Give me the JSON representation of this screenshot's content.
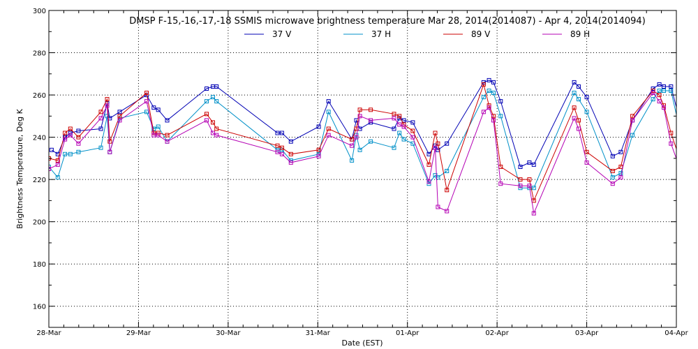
{
  "chart_data": {
    "type": "line",
    "title": "DMSP F-15,-16,-17,-18 SSMIS microwave brightness temperature Mar 28, 2014(2014087) - Apr  4, 2014(2014094)",
    "xlabel": "Date (EST)",
    "ylabel": "Brightness Temperature, Deg K",
    "xlim": [
      0,
      7
    ],
    "ylim": [
      150,
      300
    ],
    "x_ticks": [
      "28-Mar",
      "29-Mar",
      "30-Mar",
      "31-Mar",
      "01-Apr",
      "02-Apr",
      "03-Apr",
      "04-Apr"
    ],
    "y_ticks": [
      160,
      180,
      200,
      220,
      240,
      260,
      280,
      300
    ],
    "grid": true,
    "legend_position": "top-center",
    "series": [
      {
        "name": "37 V",
        "color": "#0000b4",
        "points": [
          [
            0.03,
            234
          ],
          [
            0.1,
            232
          ],
          [
            0.18,
            240
          ],
          [
            0.24,
            242
          ],
          [
            0.33,
            243
          ],
          [
            0.58,
            244
          ],
          [
            0.65,
            256
          ],
          [
            0.68,
            249
          ],
          [
            0.79,
            252
          ],
          [
            1.09,
            260
          ],
          [
            1.17,
            254
          ],
          [
            1.22,
            253
          ],
          [
            1.32,
            248
          ],
          [
            1.76,
            263
          ],
          [
            1.83,
            264
          ],
          [
            1.87,
            264
          ],
          [
            2.55,
            242
          ],
          [
            2.6,
            242
          ],
          [
            2.7,
            238
          ],
          [
            3.01,
            245
          ],
          [
            3.12,
            257
          ],
          [
            3.38,
            239
          ],
          [
            3.43,
            248
          ],
          [
            3.47,
            244
          ],
          [
            3.59,
            247
          ],
          [
            3.85,
            244
          ],
          [
            3.91,
            249
          ],
          [
            3.96,
            248
          ],
          [
            4.06,
            247
          ],
          [
            4.24,
            232
          ],
          [
            4.31,
            236
          ],
          [
            4.34,
            234
          ],
          [
            4.44,
            237
          ],
          [
            4.85,
            266
          ],
          [
            4.91,
            267
          ],
          [
            4.96,
            266
          ],
          [
            5.04,
            257
          ],
          [
            5.26,
            226
          ],
          [
            5.36,
            228
          ],
          [
            5.41,
            227
          ],
          [
            5.86,
            266
          ],
          [
            5.91,
            264
          ],
          [
            6.0,
            259
          ],
          [
            6.29,
            231
          ],
          [
            6.38,
            233
          ],
          [
            6.51,
            248
          ],
          [
            6.74,
            263
          ],
          [
            6.81,
            265
          ],
          [
            6.86,
            264
          ],
          [
            6.94,
            264
          ],
          [
            7.1,
            238
          ]
        ]
      },
      {
        "name": "37 H",
        "color": "#0090c8",
        "points": [
          [
            0.0,
            226
          ],
          [
            0.1,
            221
          ],
          [
            0.18,
            232
          ],
          [
            0.24,
            232
          ],
          [
            0.33,
            233
          ],
          [
            0.58,
            235
          ],
          [
            0.65,
            250
          ],
          [
            0.68,
            233
          ],
          [
            0.79,
            249
          ],
          [
            1.09,
            252
          ],
          [
            1.17,
            244
          ],
          [
            1.22,
            245
          ],
          [
            1.32,
            238
          ],
          [
            1.76,
            257
          ],
          [
            1.83,
            259
          ],
          [
            1.87,
            257
          ],
          [
            2.55,
            234
          ],
          [
            2.6,
            234
          ],
          [
            2.7,
            229
          ],
          [
            3.01,
            232
          ],
          [
            3.12,
            252
          ],
          [
            3.38,
            229
          ],
          [
            3.43,
            241
          ],
          [
            3.47,
            234
          ],
          [
            3.59,
            238
          ],
          [
            3.85,
            235
          ],
          [
            3.91,
            242
          ],
          [
            3.96,
            239
          ],
          [
            4.06,
            237
          ],
          [
            4.24,
            218
          ],
          [
            4.31,
            222
          ],
          [
            4.34,
            221
          ],
          [
            4.44,
            224
          ],
          [
            4.85,
            259
          ],
          [
            4.91,
            262
          ],
          [
            4.96,
            261
          ],
          [
            5.04,
            250
          ],
          [
            5.26,
            216
          ],
          [
            5.36,
            216
          ],
          [
            5.41,
            216
          ],
          [
            5.86,
            261
          ],
          [
            5.91,
            258
          ],
          [
            6.0,
            252
          ],
          [
            6.29,
            221
          ],
          [
            6.38,
            223
          ],
          [
            6.51,
            241
          ],
          [
            6.74,
            258
          ],
          [
            6.81,
            262
          ],
          [
            6.86,
            262
          ],
          [
            6.94,
            262
          ],
          [
            7.1,
            232
          ]
        ]
      },
      {
        "name": "89 V",
        "color": "#cc0000",
        "points": [
          [
            0.0,
            230
          ],
          [
            0.1,
            229
          ],
          [
            0.18,
            242
          ],
          [
            0.24,
            244
          ],
          [
            0.33,
            240
          ],
          [
            0.58,
            252
          ],
          [
            0.65,
            258
          ],
          [
            0.68,
            238
          ],
          [
            0.79,
            250
          ],
          [
            1.09,
            261
          ],
          [
            1.17,
            242
          ],
          [
            1.22,
            242
          ],
          [
            1.32,
            241
          ],
          [
            1.76,
            251
          ],
          [
            1.83,
            247
          ],
          [
            1.87,
            244
          ],
          [
            2.55,
            236
          ],
          [
            2.6,
            235
          ],
          [
            2.7,
            232
          ],
          [
            3.01,
            234
          ],
          [
            3.12,
            244
          ],
          [
            3.38,
            239
          ],
          [
            3.43,
            244
          ],
          [
            3.47,
            253
          ],
          [
            3.59,
            253
          ],
          [
            3.85,
            251
          ],
          [
            3.91,
            250
          ],
          [
            3.96,
            246
          ],
          [
            4.06,
            243
          ],
          [
            4.24,
            227
          ],
          [
            4.31,
            242
          ],
          [
            4.34,
            237
          ],
          [
            4.44,
            215
          ],
          [
            4.85,
            265
          ],
          [
            4.91,
            255
          ],
          [
            4.96,
            250
          ],
          [
            5.04,
            226
          ],
          [
            5.26,
            220
          ],
          [
            5.36,
            220
          ],
          [
            5.41,
            210
          ],
          [
            5.86,
            254
          ],
          [
            5.91,
            248
          ],
          [
            6.0,
            233
          ],
          [
            6.29,
            224
          ],
          [
            6.38,
            226
          ],
          [
            6.51,
            250
          ],
          [
            6.74,
            262
          ],
          [
            6.81,
            260
          ],
          [
            6.86,
            255
          ],
          [
            6.94,
            242
          ],
          [
            7.1,
            222
          ]
        ]
      },
      {
        "name": "89 H",
        "color": "#b400b4",
        "points": [
          [
            0.0,
            225
          ],
          [
            0.1,
            227
          ],
          [
            0.18,
            239
          ],
          [
            0.24,
            241
          ],
          [
            0.33,
            237
          ],
          [
            0.58,
            249
          ],
          [
            0.65,
            255
          ],
          [
            0.68,
            233
          ],
          [
            0.79,
            248
          ],
          [
            1.09,
            257
          ],
          [
            1.17,
            241
          ],
          [
            1.22,
            241
          ],
          [
            1.32,
            238
          ],
          [
            1.76,
            248
          ],
          [
            1.83,
            242
          ],
          [
            1.87,
            241
          ],
          [
            2.55,
            233
          ],
          [
            2.6,
            232
          ],
          [
            2.7,
            228
          ],
          [
            3.01,
            231
          ],
          [
            3.12,
            241
          ],
          [
            3.38,
            236
          ],
          [
            3.43,
            240
          ],
          [
            3.47,
            250
          ],
          [
            3.59,
            248
          ],
          [
            3.85,
            249
          ],
          [
            3.91,
            246
          ],
          [
            3.96,
            245
          ],
          [
            4.06,
            240
          ],
          [
            4.24,
            219
          ],
          [
            4.31,
            235
          ],
          [
            4.34,
            207
          ],
          [
            4.44,
            205
          ],
          [
            4.85,
            252
          ],
          [
            4.91,
            254
          ],
          [
            4.96,
            248
          ],
          [
            5.04,
            218
          ],
          [
            5.26,
            217
          ],
          [
            5.36,
            217
          ],
          [
            5.41,
            204
          ],
          [
            5.86,
            249
          ],
          [
            5.91,
            244
          ],
          [
            6.0,
            228
          ],
          [
            6.29,
            218
          ],
          [
            6.38,
            221
          ],
          [
            6.51,
            248
          ],
          [
            6.74,
            261
          ],
          [
            6.81,
            257
          ],
          [
            6.86,
            254
          ],
          [
            6.94,
            237
          ],
          [
            7.1,
            218
          ]
        ]
      }
    ]
  }
}
